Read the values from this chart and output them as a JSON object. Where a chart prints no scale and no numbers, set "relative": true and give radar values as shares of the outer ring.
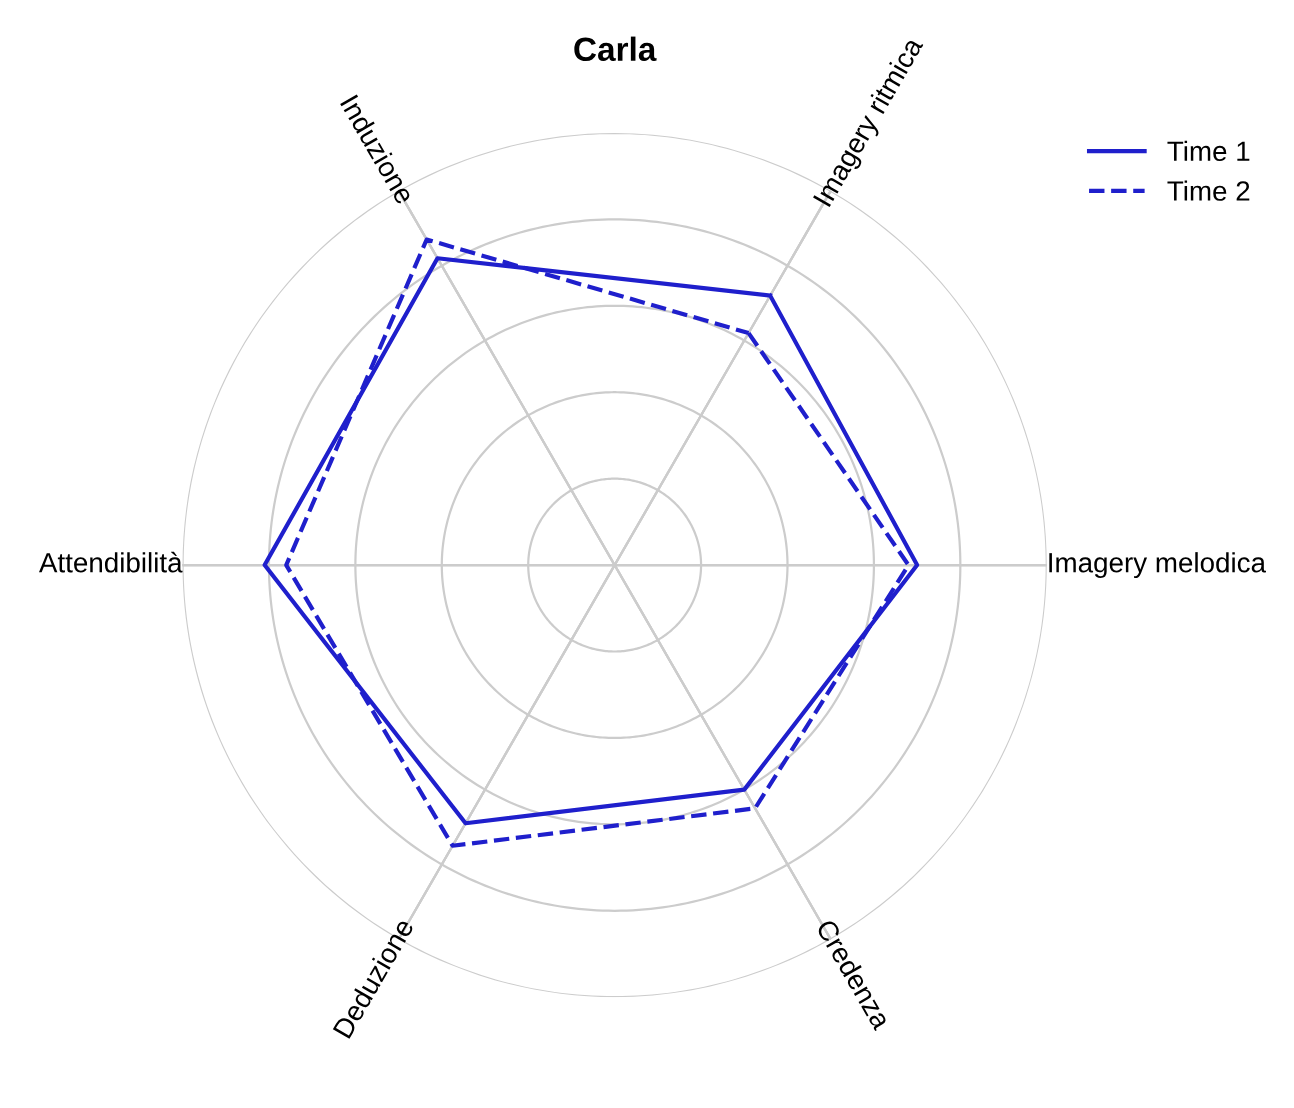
{
  "chart_data": {
    "type": "radar",
    "title": "Carla",
    "relative": true,
    "grid": true,
    "legend": "top right",
    "categories": [
      "Imagery ritmica",
      "Imagery melodica",
      "Credenza",
      "Deduzione",
      "Attendibilità",
      "Induzione"
    ],
    "series": [
      {
        "name": "Time 1",
        "color": "#1f1fcc",
        "line_style": "solid",
        "values": [
          0.72,
          0.7,
          0.6,
          0.69,
          0.81,
          0.82
        ]
      },
      {
        "name": "Time 2",
        "color": "#1f1fcc",
        "line_style": "dashed",
        "values": [
          0.62,
          0.68,
          0.65,
          0.75,
          0.76,
          0.87
        ]
      }
    ]
  }
}
